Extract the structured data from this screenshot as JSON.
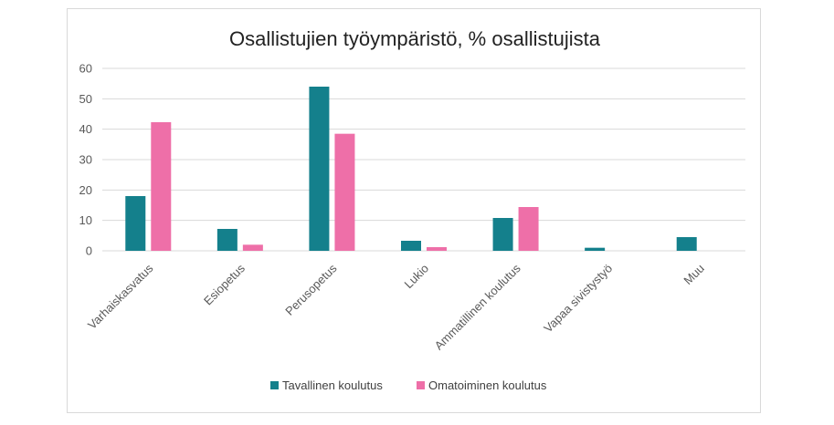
{
  "chart_data": {
    "type": "bar",
    "title": "Osallistujien työympäristö, % osallistujista",
    "xlabel": "",
    "ylabel": "",
    "ylim": [
      0,
      60
    ],
    "yticks": [
      0,
      10,
      20,
      30,
      40,
      50,
      60
    ],
    "grid": true,
    "legend_position": "bottom",
    "categories": [
      "Varhaiskasvatus",
      "Esiopetus",
      "Perusopetus",
      "Lukio",
      "Ammatillinen koulutus",
      "Vapaa sivistystyö",
      "Muu"
    ],
    "series": [
      {
        "name": "Tavallinen koulutus",
        "color": "#14808c",
        "values": [
          18,
          7.2,
          54,
          3.3,
          10.8,
          1,
          4.5
        ]
      },
      {
        "name": "Omatoiminen koulutus",
        "color": "#ee6fa8",
        "values": [
          42.3,
          2,
          38.5,
          1.2,
          14.4,
          0,
          0
        ]
      }
    ]
  }
}
